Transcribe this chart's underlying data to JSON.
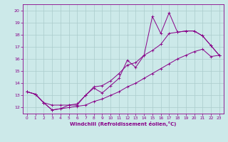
{
  "xlabel": "Windchill (Refroidissement éolien,°C)",
  "bg_color": "#cce9e9",
  "grid_color": "#aacccc",
  "line_color": "#880088",
  "x_ticks": [
    0,
    1,
    2,
    3,
    4,
    5,
    6,
    7,
    8,
    9,
    10,
    11,
    12,
    13,
    14,
    15,
    16,
    17,
    18,
    19,
    20,
    21,
    22,
    23
  ],
  "y_ticks": [
    12,
    13,
    14,
    15,
    16,
    17,
    18,
    19,
    20
  ],
  "ylim": [
    11.5,
    20.5
  ],
  "xlim": [
    -0.5,
    23.5
  ],
  "main_x": [
    0,
    1,
    2,
    3,
    4,
    5,
    6,
    7,
    8,
    9,
    10,
    11,
    12,
    13,
    14,
    15,
    16,
    17,
    18,
    19,
    20,
    21,
    22,
    23
  ],
  "main_y": [
    13.3,
    13.1,
    12.4,
    11.8,
    11.9,
    12.2,
    12.2,
    13.0,
    13.6,
    13.2,
    13.8,
    14.4,
    15.9,
    15.3,
    16.3,
    19.5,
    18.1,
    19.8,
    18.2,
    18.3,
    18.3,
    17.9,
    17.1,
    16.3
  ],
  "upper_x": [
    0,
    1,
    2,
    3,
    4,
    5,
    6,
    7,
    8,
    9,
    10,
    11,
    12,
    13,
    14,
    15,
    16,
    17,
    18,
    19,
    20,
    21,
    22,
    23
  ],
  "upper_y": [
    13.3,
    13.1,
    12.4,
    12.2,
    12.2,
    12.2,
    12.3,
    13.0,
    13.7,
    13.8,
    14.2,
    14.8,
    15.5,
    15.7,
    16.3,
    16.7,
    17.2,
    18.1,
    18.2,
    18.3,
    18.3,
    17.9,
    17.1,
    16.3
  ],
  "lower_x": [
    0,
    1,
    2,
    3,
    4,
    5,
    6,
    7,
    8,
    9,
    10,
    11,
    12,
    13,
    14,
    15,
    16,
    17,
    18,
    19,
    20,
    21,
    22,
    23
  ],
  "lower_y": [
    13.3,
    13.1,
    12.4,
    11.8,
    11.9,
    12.0,
    12.1,
    12.2,
    12.5,
    12.7,
    13.0,
    13.3,
    13.7,
    14.0,
    14.4,
    14.8,
    15.2,
    15.6,
    16.0,
    16.3,
    16.6,
    16.8,
    16.2,
    16.3
  ]
}
